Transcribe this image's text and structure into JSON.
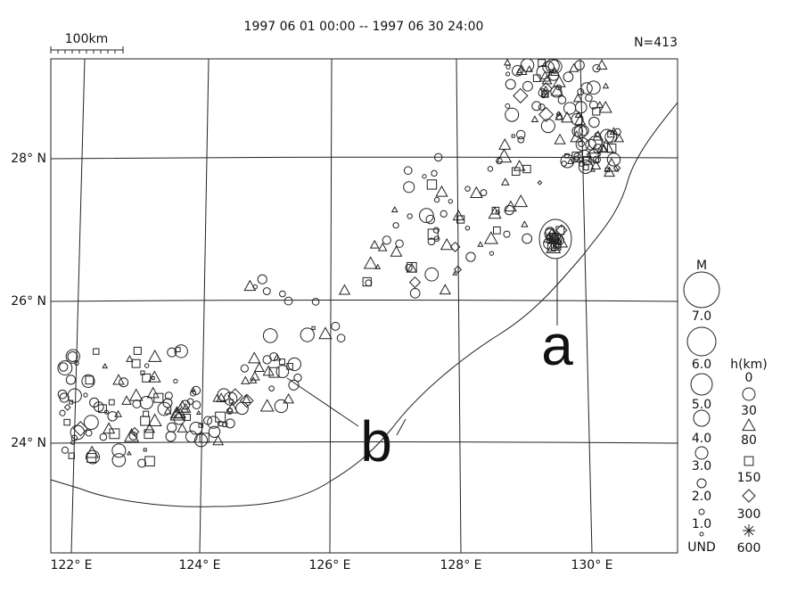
{
  "header": {
    "title": "1997 06 01 00:00 -- 1997 06 30 24:00",
    "count": "N=413",
    "scale": "100km"
  },
  "map": {
    "lat_labels": [
      "28° N",
      "26° N",
      "24° N"
    ],
    "lon_labels": [
      "122° E",
      "124° E",
      "126° E",
      "128° E",
      "130° E"
    ],
    "annotations": [
      "a",
      "b"
    ]
  },
  "legend": {
    "magnitude_title": "M",
    "magnitudes": [
      "7.0",
      "6.0",
      "5.0",
      "4.0",
      "3.0",
      "2.0",
      "1.0",
      "UND"
    ],
    "depth_title": "h(km)",
    "depths": [
      "0",
      "30",
      "80",
      "150",
      "300",
      "600"
    ]
  }
}
